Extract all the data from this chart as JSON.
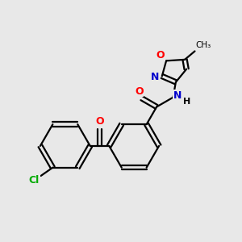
{
  "bg_color": "#e8e8e8",
  "line_color": "#000000",
  "bond_width": 1.6,
  "atom_colors": {
    "O": "#ff0000",
    "N": "#0000cc",
    "Cl": "#00aa00",
    "C": "#000000",
    "H": "#000000"
  }
}
